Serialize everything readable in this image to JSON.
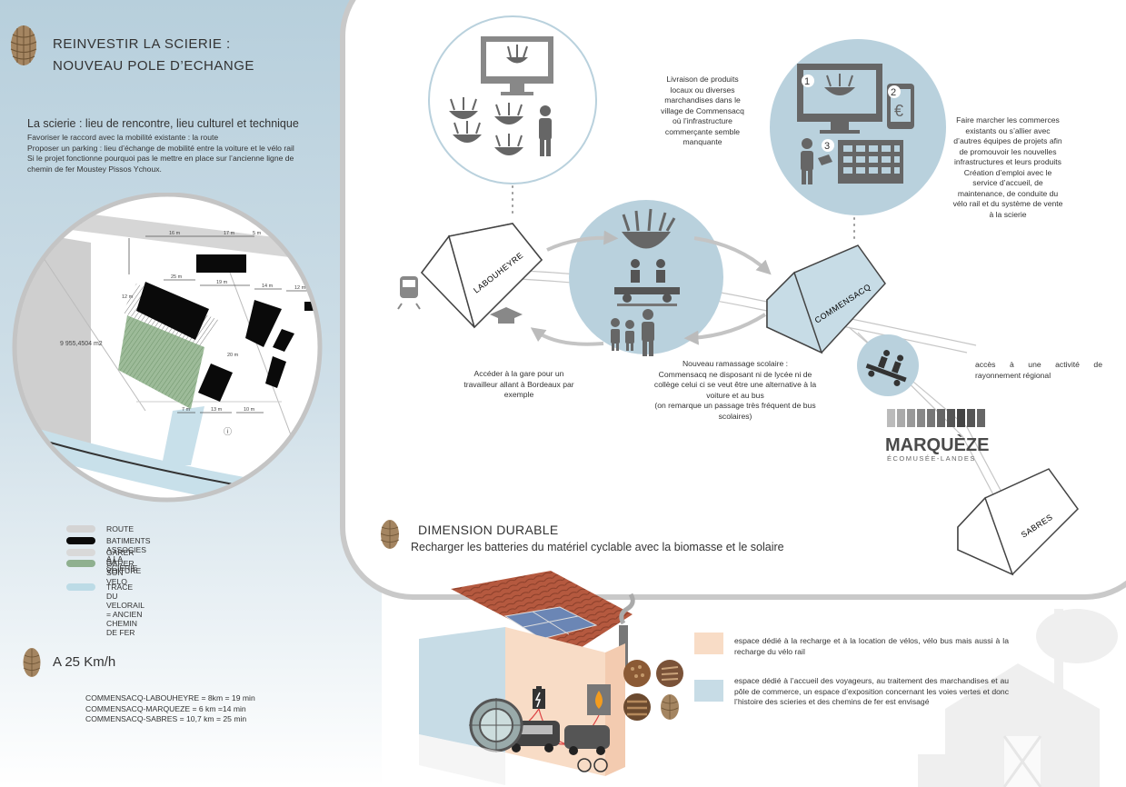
{
  "header": {
    "title_line1": "REINVESTIR LA SCIERIE :",
    "title_line2": "NOUVEAU POLE D’ECHANGE"
  },
  "intro": {
    "heading": "La scierie : lieu de rencontre, lieu culturel et technique",
    "lines": [
      "Favoriser le raccord avec la mobilité existante : la route",
      "Proposer un parking : lieu d’échange de mobilité entre la voiture et le vélo rail",
      "Si le projet fonctionne pourquoi pas le mettre en place sur l’ancienne ligne de",
      "chemin de fer Moustey Pissos Ychoux."
    ]
  },
  "plan": {
    "area_label": "9 955,4504 m2",
    "dims": [
      "16 m",
      "17 m",
      "5 m",
      "25 m",
      "19 m",
      "14 m",
      "12 m",
      "7 m",
      "13 m",
      "10 m",
      "12 m",
      "20 m"
    ]
  },
  "legend": {
    "items": [
      {
        "label": "ROUTE",
        "color": "#d4d4d4"
      },
      {
        "label": "BATIMENTS ASSOCIES A LA SCIERIE",
        "color": "#0a0a0a"
      },
      {
        "label": "GARER SA VOITURE",
        "color": "#d9d9d9"
      },
      {
        "label": "GARER SON VELO",
        "color": "#8fb08f"
      }
    ],
    "track": {
      "label": "TRACE DU VELORAIL = ANCIEN CHEMIN DE FER",
      "color": "#bcdbe6"
    }
  },
  "speed": {
    "title": "A 25 Km/h",
    "lines": [
      "COMMENSACQ-LABOUHEYRE = 8km = 19 min",
      "COMMENSACQ-MARQUEZE = 6 km =14 min",
      "COMMENSACQ-SABRES = 10,7 km = 25 min"
    ]
  },
  "diagram": {
    "houses": {
      "labouheyre": "LABOUHEYRE",
      "commensacq": "COMMENSACQ",
      "sabres": "SABRES"
    },
    "markers": [
      "1",
      "2",
      "3"
    ],
    "euro": "€",
    "delivery_text": [
      "Livraison de produits",
      "locaux ou diverses",
      "marchandises dans le",
      "village de Commensacq",
      "où l’infrastructure",
      "commerçante semble",
      "manquante"
    ],
    "commerce_text": [
      "Faire marcher les commerces",
      "existants ou s’allier avec",
      "d’autres équipes de projets afin",
      "de promouvoir les nouvelles",
      "infrastructures et leurs produits",
      "Création d’emploi avec le",
      "service d’accueil, de",
      "maintenance, de conduite du",
      "vélo rail et du système de vente",
      "à la scierie"
    ],
    "station_text": [
      "Accéder à la gare pour un",
      "travailleur allant à Bordeaux par",
      "exemple"
    ],
    "school_text": [
      "Nouveau ramassage scolaire :",
      "Commensacq ne disposant ni de lycée ni de",
      "collège celui ci se veut être une alternative à la",
      "voiture et au bus",
      "(on remarque un passage très fréquent de bus",
      "scolaires)"
    ],
    "regional_text": [
      "accès à une activité de",
      "rayonnement régional"
    ],
    "marqueze_title": "MARQUÈZE",
    "marqueze_sub": "ÉCOMUSÉE-LANDES"
  },
  "durable": {
    "title": "DIMENSION DURABLE",
    "subtitle": "Recharger les batteries du matériel cyclable avec la biomasse et le solaire",
    "legend": [
      {
        "text": "espace dédié à la recharge et à la location de vélos, vélo bus mais aussi à la recharge du vélo rail",
        "color": "#f8dcc6"
      },
      {
        "text": "espace dédié à l’accueil des voyageurs, au traitement des marchandises et au pôle de commerce, un espace d’exposition concernant les voies vertes et donc l’histoire des scieries et des chemins de fer est envisagé",
        "color": "#c7dce6"
      }
    ]
  },
  "colors": {
    "circle_blue": "#b9d1dd",
    "roof_red": "#b5593f",
    "track_blue": "#bcdbe6"
  }
}
